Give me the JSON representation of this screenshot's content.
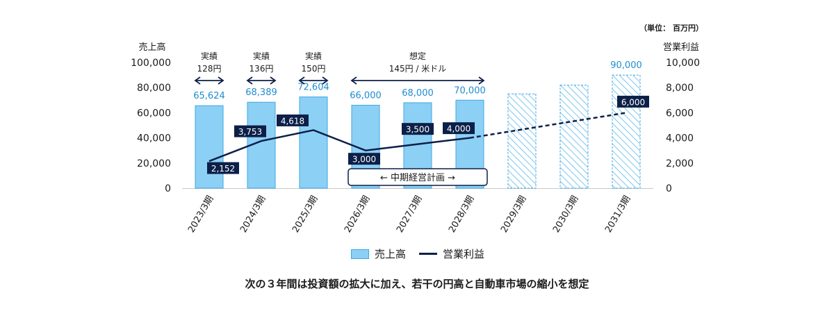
{
  "unit_note": "（単位： 百万円）",
  "caption": "次の３年間は投資額の拡大に加え、若干の円高と自動車市場の縮小を想定",
  "legend": {
    "bar": "売上高",
    "line": "営業利益"
  },
  "midterm_plan_label": "←  中期経営計画  →",
  "periods": [
    {
      "title": "実績",
      "rate": "128円"
    },
    {
      "title": "実績",
      "rate": "136円"
    },
    {
      "title": "実績",
      "rate": "150円"
    },
    {
      "title": "想定",
      "rate": "145円 / 米ドル"
    }
  ],
  "colors": {
    "bar_fill": "#8dd0f5",
    "bar_stroke": "#3ea7e2",
    "line": "#0c1f48",
    "value_text": "#1f8ccf"
  },
  "chart_data": {
    "type": "bar",
    "categories": [
      "2023/3期",
      "2024/3期",
      "2025/3期",
      "2026/3期",
      "2027/3期",
      "2028/3期",
      "2029/3期",
      "2030/3期",
      "2031/3期"
    ],
    "series": [
      {
        "name": "売上高",
        "axis": "left",
        "type": "bar",
        "values": [
          65624,
          68389,
          72604,
          66000,
          68000,
          70000,
          75000,
          82000,
          90000
        ],
        "labels": [
          "65,624",
          "68,389",
          "72,604",
          "66,000",
          "68,000",
          "70,000",
          "",
          "",
          "90,000"
        ],
        "hatched": [
          false,
          false,
          false,
          false,
          false,
          false,
          true,
          true,
          true
        ]
      },
      {
        "name": "営業利益",
        "axis": "right",
        "type": "line",
        "values": [
          2152,
          3753,
          4618,
          3000,
          3500,
          4000,
          null,
          null,
          6000
        ],
        "labels": [
          "2,152",
          "3,753",
          "4,618",
          "3,000",
          "3,500",
          "4,000",
          "",
          "",
          "6,000"
        ]
      }
    ],
    "ylabel": "売上高",
    "y2label": "営業利益",
    "ylim": [
      0,
      100000
    ],
    "y2lim": [
      0,
      10000
    ],
    "yticks": [
      "0",
      "20,000",
      "40,000",
      "60,000",
      "80,000",
      "100,000"
    ],
    "y2ticks": [
      "0",
      "2,000",
      "4,000",
      "6,000",
      "8,000",
      "10,000"
    ]
  }
}
